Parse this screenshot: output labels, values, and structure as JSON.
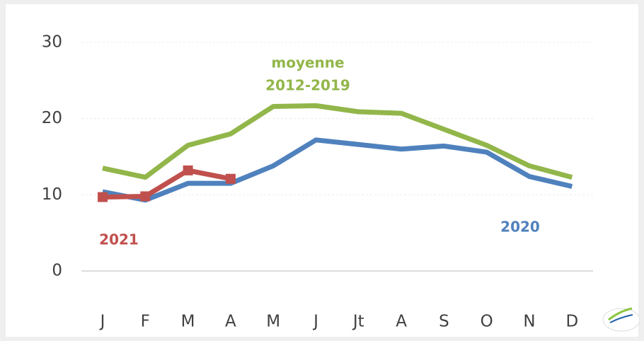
{
  "chart_data": {
    "type": "line",
    "categories": [
      "J",
      "F",
      "M",
      "A",
      "M",
      "J",
      "Jt",
      "A",
      "S",
      "O",
      "N",
      "D"
    ],
    "series": [
      {
        "color": "#92b64a",
        "values": [
          13.5,
          12.3,
          16.5,
          18.0,
          21.6,
          21.7,
          20.9,
          20.7,
          18.6,
          16.5,
          13.8,
          12.3
        ]
      },
      {
        "color": "#4f81bd",
        "values": [
          10.4,
          9.3,
          11.5,
          11.5,
          13.8,
          17.2,
          16.6,
          16.0,
          16.4,
          15.6,
          12.4,
          11.1
        ]
      },
      {
        "color": "#c0504d",
        "values": [
          9.7,
          9.8,
          13.2,
          12.1,
          null,
          null,
          null,
          null,
          null,
          null,
          null,
          null
        ],
        "markers": true
      }
    ],
    "annotations": [
      {
        "text": "moyenne",
        "color": "#92b64a"
      },
      {
        "text": "2012-2019",
        "color": "#92b64a"
      },
      {
        "text": "2020",
        "color": "#4f81bd"
      },
      {
        "text": "2021",
        "color": "#c0504d"
      }
    ],
    "ylim": [
      0,
      30
    ],
    "yticks": [
      0,
      10,
      20,
      30
    ],
    "grid": true
  }
}
